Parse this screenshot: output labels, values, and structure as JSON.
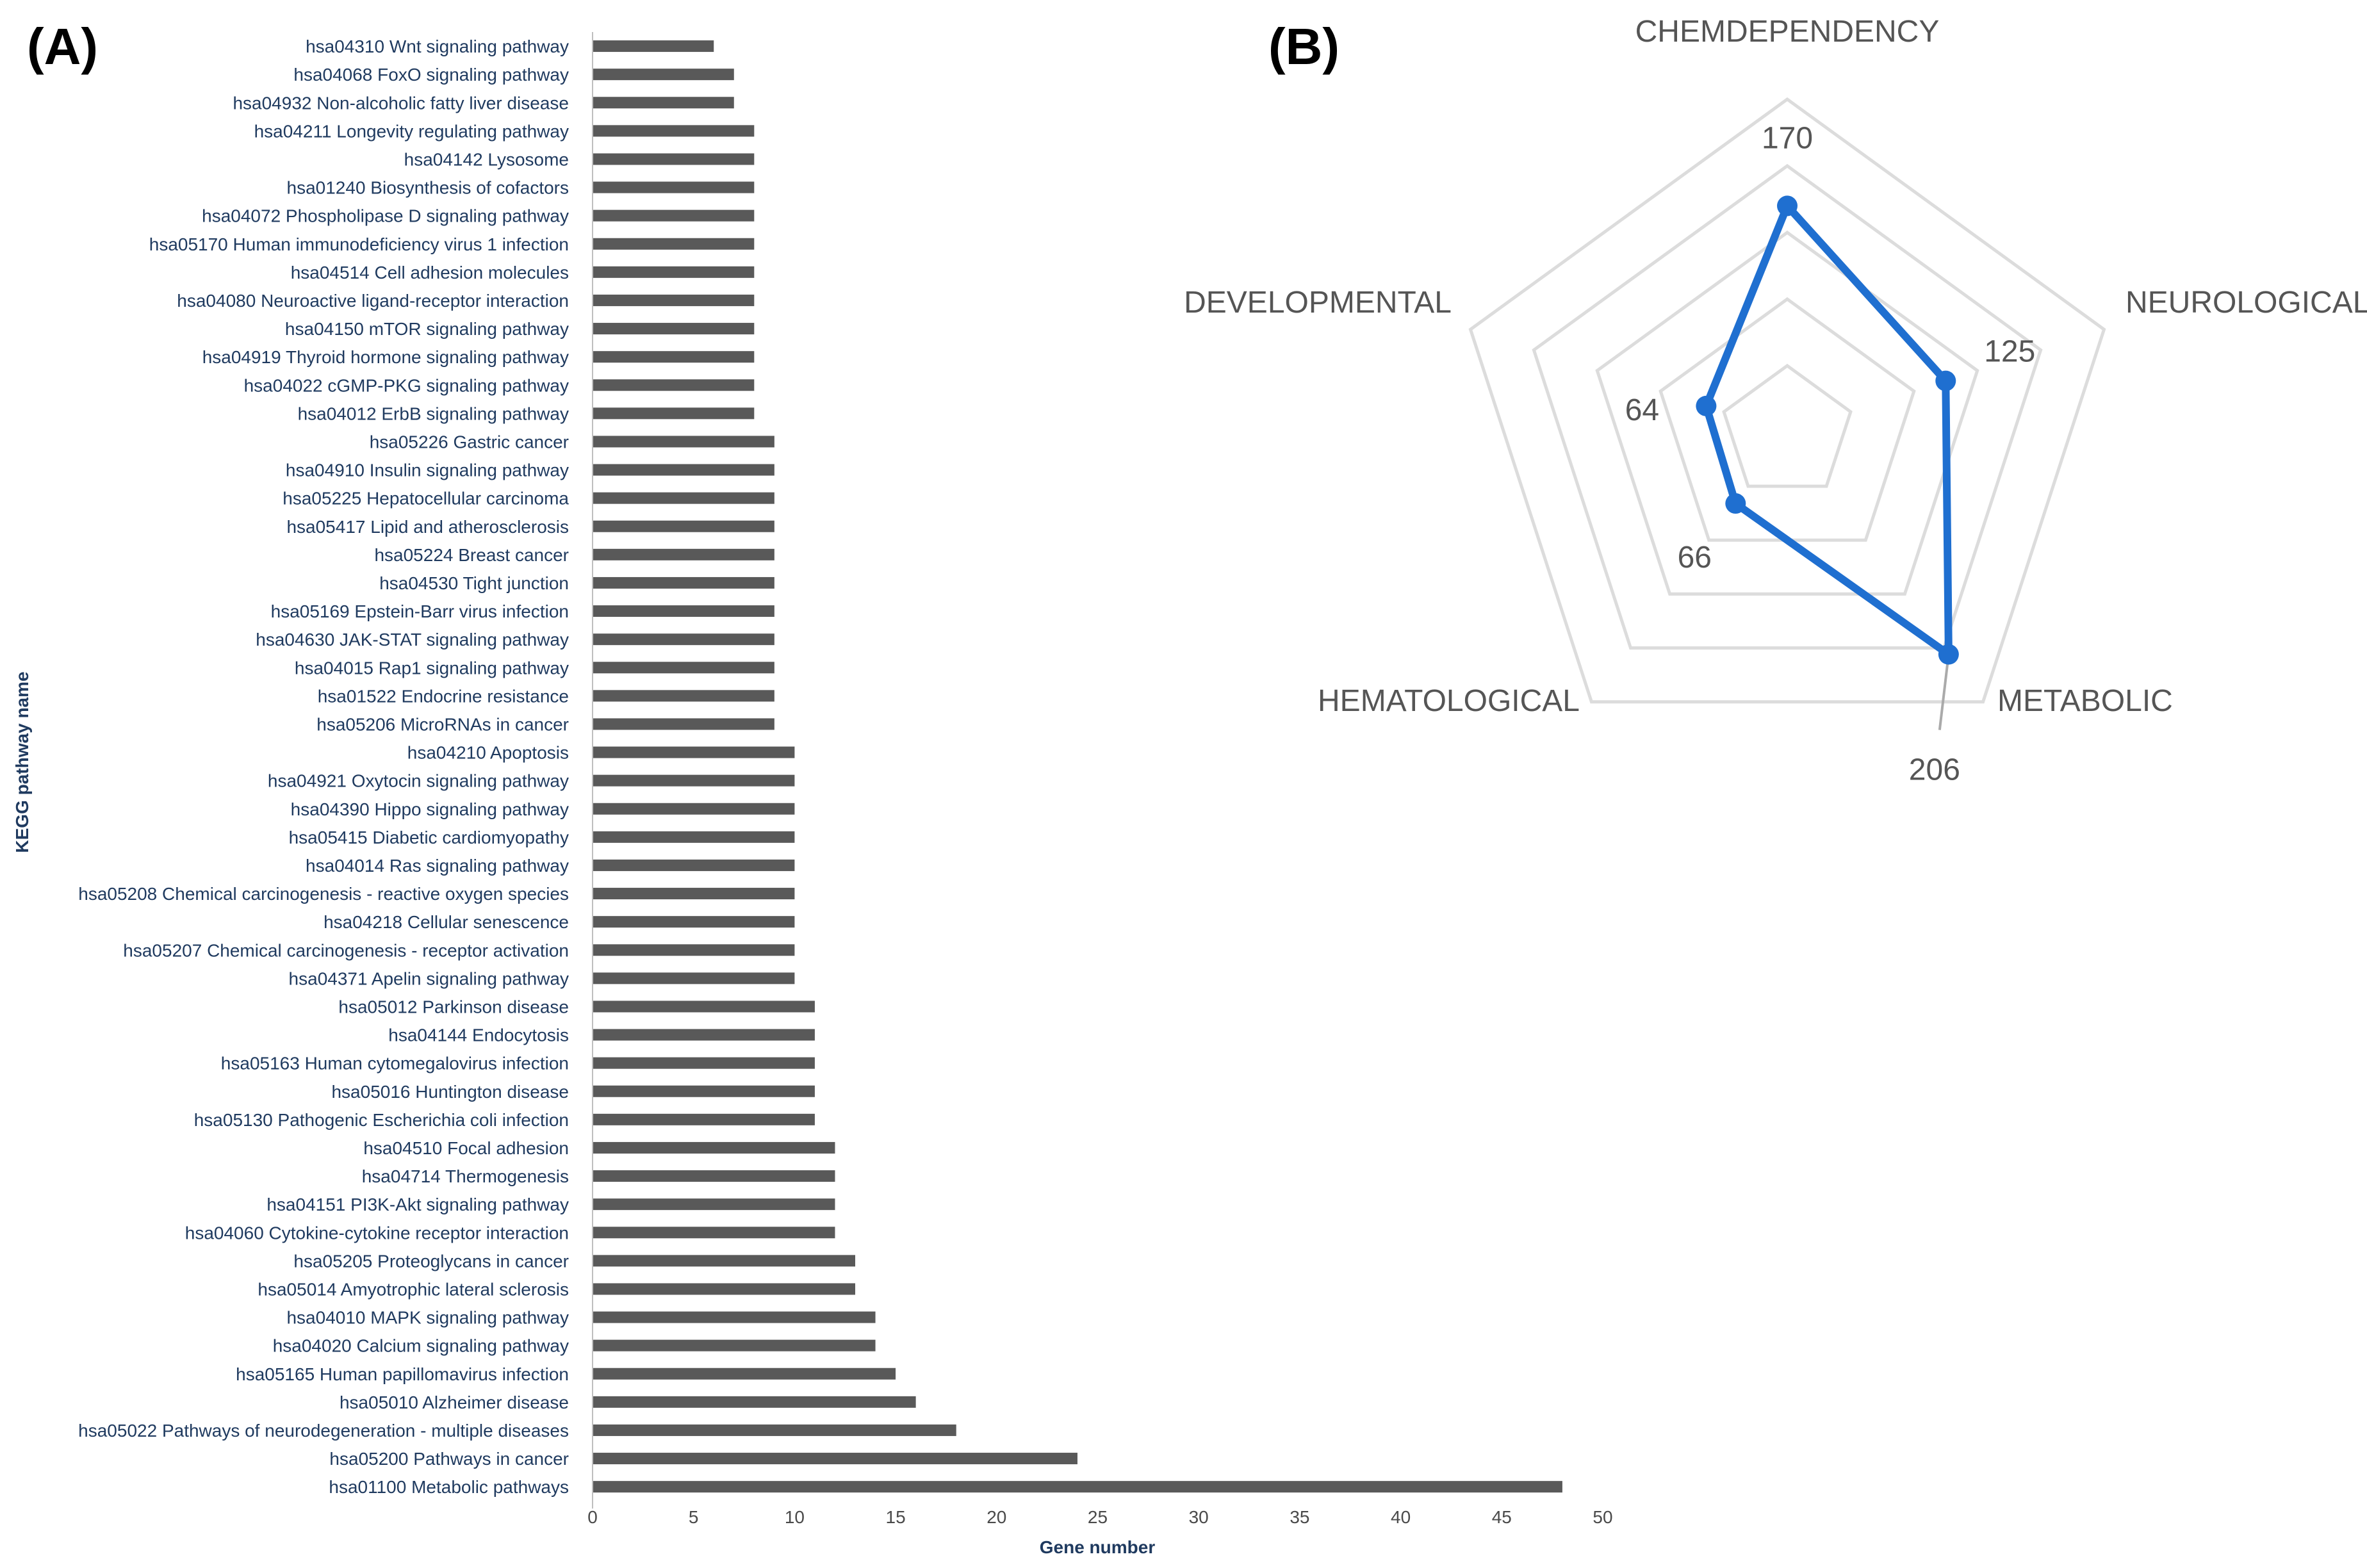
{
  "panel_labels": {
    "a": "(A)",
    "b": "(B)"
  },
  "colors": {
    "bar": "#595959",
    "bar_axis": "#bfbfbf",
    "category_text": "#1f3a5f",
    "tick_text": "#4a4a4a",
    "radar_line": "#1f6fd0",
    "radar_grid": "#dcdcdc",
    "radar_text": "#555555"
  },
  "chart_data": [
    {
      "type": "bar",
      "orientation": "horizontal",
      "xlabel": "Gene number",
      "ylabel": "KEGG pathway name",
      "xlim": [
        0,
        50
      ],
      "xticks": [
        0,
        5,
        10,
        15,
        20,
        25,
        30,
        35,
        40,
        45,
        50
      ],
      "grid": false,
      "categories": [
        "hsa04310 Wnt signaling pathway",
        "hsa04068 FoxO signaling pathway",
        "hsa04932 Non-alcoholic fatty liver disease",
        "hsa04211 Longevity regulating pathway",
        "hsa04142 Lysosome",
        "hsa01240 Biosynthesis of cofactors",
        "hsa04072 Phospholipase D signaling pathway",
        "hsa05170 Human immunodeficiency virus 1 infection",
        "hsa04514 Cell adhesion molecules",
        "hsa04080 Neuroactive ligand-receptor interaction",
        "hsa04150 mTOR signaling pathway",
        "hsa04919 Thyroid hormone signaling pathway",
        "hsa04022 cGMP-PKG signaling pathway",
        "hsa04012 ErbB signaling pathway",
        "hsa05226 Gastric cancer",
        "hsa04910 Insulin signaling pathway",
        "hsa05225 Hepatocellular carcinoma",
        "hsa05417 Lipid and atherosclerosis",
        "hsa05224 Breast cancer",
        "hsa04530 Tight junction",
        "hsa05169 Epstein-Barr virus infection",
        "hsa04630 JAK-STAT signaling pathway",
        "hsa04015 Rap1 signaling pathway",
        "hsa01522 Endocrine resistance",
        "hsa05206 MicroRNAs in cancer",
        "hsa04210 Apoptosis",
        "hsa04921 Oxytocin signaling pathway",
        "hsa04390 Hippo signaling pathway",
        "hsa05415 Diabetic cardiomyopathy",
        "hsa04014 Ras signaling pathway",
        "hsa05208 Chemical carcinogenesis - reactive oxygen species",
        "hsa04218 Cellular senescence",
        "hsa05207 Chemical carcinogenesis - receptor activation",
        "hsa04371 Apelin signaling pathway",
        "hsa05012 Parkinson disease",
        "hsa04144 Endocytosis",
        "hsa05163 Human cytomegalovirus infection",
        "hsa05016 Huntington disease",
        "hsa05130 Pathogenic Escherichia coli infection",
        "hsa04510 Focal adhesion",
        "hsa04714 Thermogenesis",
        "hsa04151 PI3K-Akt signaling pathway",
        "hsa04060 Cytokine-cytokine receptor interaction",
        "hsa05205 Proteoglycans in cancer",
        "hsa05014 Amyotrophic lateral sclerosis",
        "hsa04010 MAPK signaling pathway",
        "hsa04020 Calcium signaling pathway",
        "hsa05165 Human papillomavirus infection",
        "hsa05010 Alzheimer disease",
        "hsa05022 Pathways of neurodegeneration - multiple diseases",
        "hsa05200 Pathways in cancer",
        "hsa01100 Metabolic pathways"
      ],
      "values": [
        6,
        7,
        7,
        8,
        8,
        8,
        8,
        8,
        8,
        8,
        8,
        8,
        8,
        8,
        9,
        9,
        9,
        9,
        9,
        9,
        9,
        9,
        9,
        9,
        9,
        10,
        10,
        10,
        10,
        10,
        10,
        10,
        10,
        10,
        11,
        11,
        11,
        11,
        11,
        12,
        12,
        12,
        12,
        13,
        13,
        14,
        14,
        15,
        16,
        18,
        24,
        48
      ]
    },
    {
      "type": "radar",
      "axes": [
        "CHEMDEPENDENCY",
        "NEUROLOGICAL",
        "METABOLIC",
        "HEMATOLOGICAL",
        "DEVELOPMENTAL"
      ],
      "values": [
        170,
        125,
        206,
        66,
        64
      ],
      "rmax": 250,
      "grid_levels": 5
    }
  ]
}
